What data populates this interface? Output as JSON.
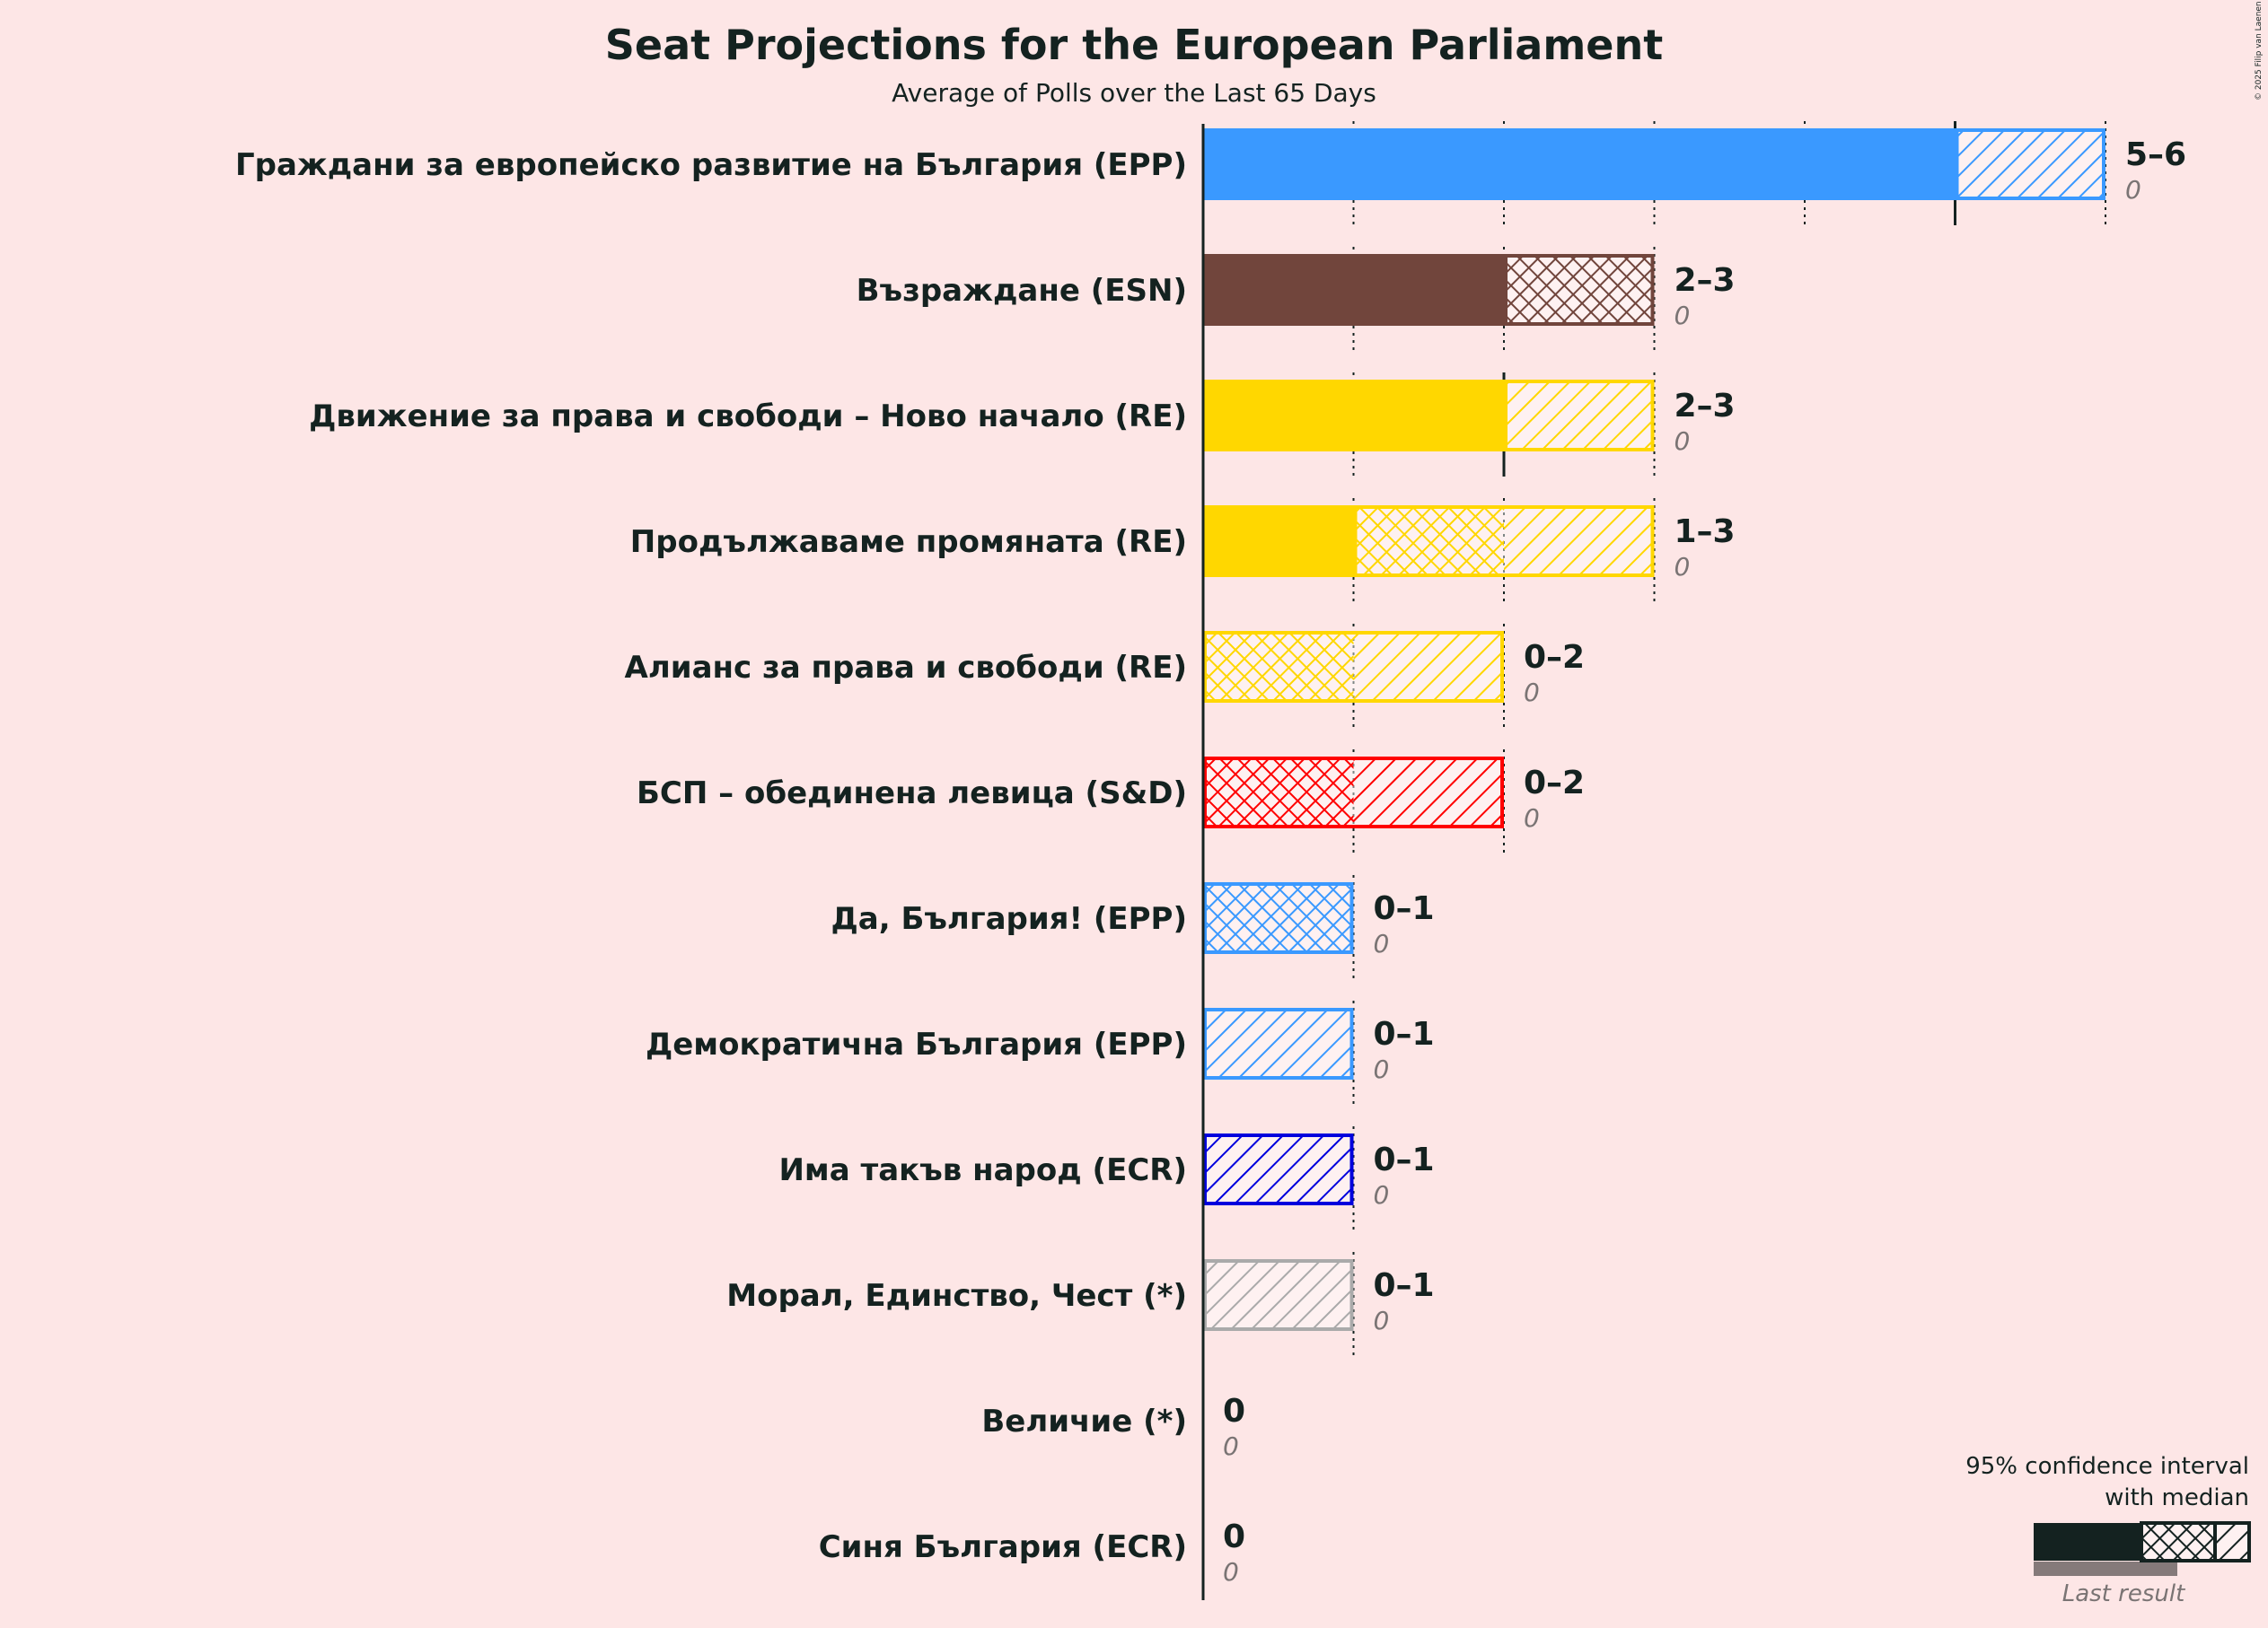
{
  "chart_data": {
    "type": "bar",
    "orientation": "horizontal",
    "title": "Seat Projections for the European Parliament",
    "subtitle": "Average of Polls over the Last 65 Days",
    "xlim": [
      0,
      6
    ],
    "gridlines": [
      1,
      2,
      3,
      4,
      5,
      6
    ],
    "parties": [
      {
        "name": "Граждани за европейско развитие на България (EPP)",
        "color": "#3a99ff",
        "low": 5,
        "median": 5,
        "high": 6,
        "range_label": "5–6",
        "last_result": 0,
        "last_label": "0"
      },
      {
        "name": "Възраждане (ESN)",
        "color": "#71453c",
        "low": 2,
        "median": 3,
        "high": 3,
        "range_label": "2–3",
        "last_result": 0,
        "last_label": "0"
      },
      {
        "name": "Движение за права и свободи – Ново начало (RE)",
        "color": "#ffd700",
        "low": 2,
        "median": 2,
        "high": 3,
        "range_label": "2–3",
        "last_result": 0,
        "last_label": "0"
      },
      {
        "name": "Продължаваме промяната (RE)",
        "color": "#ffd700",
        "low": 1,
        "median": 2,
        "high": 3,
        "range_label": "1–3",
        "last_result": 0,
        "last_label": "0"
      },
      {
        "name": "Алианс за права и свободи (RE)",
        "color": "#ffd700",
        "low": 0,
        "median": 1,
        "high": 2,
        "range_label": "0–2",
        "last_result": 0,
        "last_label": "0"
      },
      {
        "name": "БСП – обединена левица (S&D)",
        "color": "#ff0000",
        "low": 0,
        "median": 1,
        "high": 2,
        "range_label": "0–2",
        "last_result": 0,
        "last_label": "0"
      },
      {
        "name": "Да, България! (EPP)",
        "color": "#3a99ff",
        "low": 0,
        "median": 1,
        "high": 1,
        "range_label": "0–1",
        "last_result": 0,
        "last_label": "0"
      },
      {
        "name": "Демократична България (EPP)",
        "color": "#3a99ff",
        "low": 0,
        "median": 0,
        "high": 1,
        "range_label": "0–1",
        "last_result": 0,
        "last_label": "0"
      },
      {
        "name": "Има такъв народ (ECR)",
        "color": "#0000dd",
        "low": 0,
        "median": 0,
        "high": 1,
        "range_label": "0–1",
        "last_result": 0,
        "last_label": "0"
      },
      {
        "name": "Морал, Единство, Чест (*)",
        "color": "#aaaaaa",
        "low": 0,
        "median": 0,
        "high": 1,
        "range_label": "0–1",
        "last_result": 0,
        "last_label": "0"
      },
      {
        "name": "Величие (*)",
        "color": "#aaaaaa",
        "low": 0,
        "median": 0,
        "high": 0,
        "range_label": "0",
        "last_result": 0,
        "last_label": "0"
      },
      {
        "name": "Синя България (ECR)",
        "color": "#0000dd",
        "low": 0,
        "median": 0,
        "high": 0,
        "range_label": "0",
        "last_result": 0,
        "last_label": "0"
      }
    ],
    "legend": {
      "line1": "95% confidence interval",
      "line2": "with median",
      "last_result_label": "Last result",
      "position": "bottom-right"
    },
    "copyright": "© 2025 Filip van Laenen"
  }
}
